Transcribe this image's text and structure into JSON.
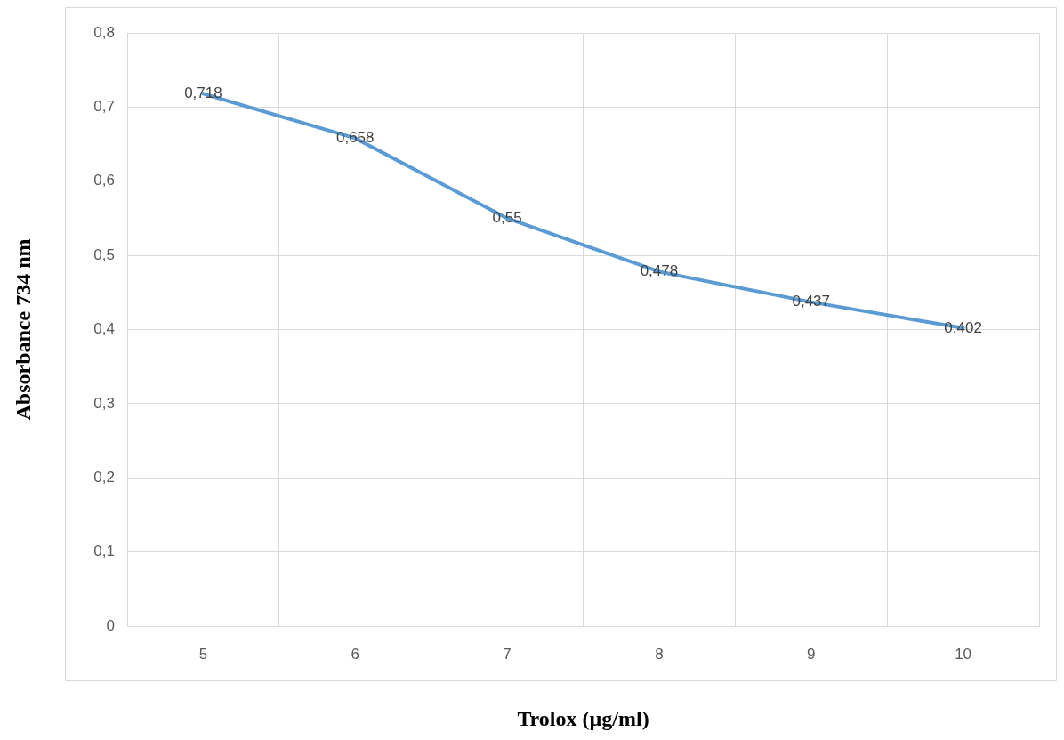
{
  "chart_data": {
    "type": "line",
    "xlabel": "Trolox (µg/ml)",
    "ylabel": "Absorbance 734 nm",
    "categories": [
      "5",
      "6",
      "7",
      "8",
      "9",
      "10"
    ],
    "series": [
      {
        "color": "#5b9bd5",
        "values": [
          0.718,
          0.658,
          0.55,
          0.478,
          0.437,
          0.402
        ],
        "value_labels": [
          "0,718",
          "0,658",
          "0,55",
          "0,478",
          "0,437",
          "0,402"
        ]
      }
    ],
    "ylim": [
      0,
      0.8
    ],
    "yticks": [
      0,
      {
        "value": 0.1,
        "label": "0,1"
      },
      {
        "value": 0.2,
        "label": "0,2"
      },
      {
        "value": 0.3,
        "label": "0,3"
      },
      {
        "value": 0.4,
        "label": "0,4"
      },
      {
        "value": 0.5,
        "label": "0,5"
      },
      {
        "value": 0.6,
        "label": "0,6"
      },
      {
        "value": 0.7,
        "label": "0,7"
      },
      {
        "value": 0.8,
        "label": "0,8"
      }
    ],
    "grid": true,
    "legend": false,
    "marker": "none",
    "line_style": "solid"
  }
}
